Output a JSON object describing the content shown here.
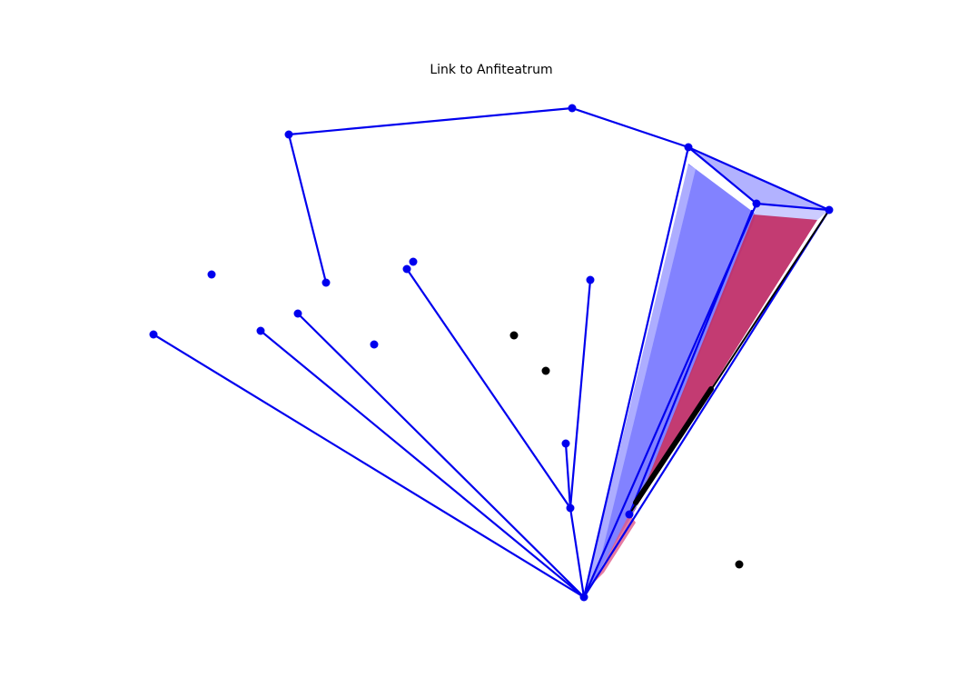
{
  "title": "Link to Anfiteatrum",
  "colors": {
    "edge": "#0000ee",
    "node": "#0000ee",
    "point": "#000000",
    "fan_blue": "#7b7bff",
    "fan_blue_light": "#aaaaff",
    "fan_red": "#c0306a",
    "fan_highlight": "#ffffff"
  }
}
